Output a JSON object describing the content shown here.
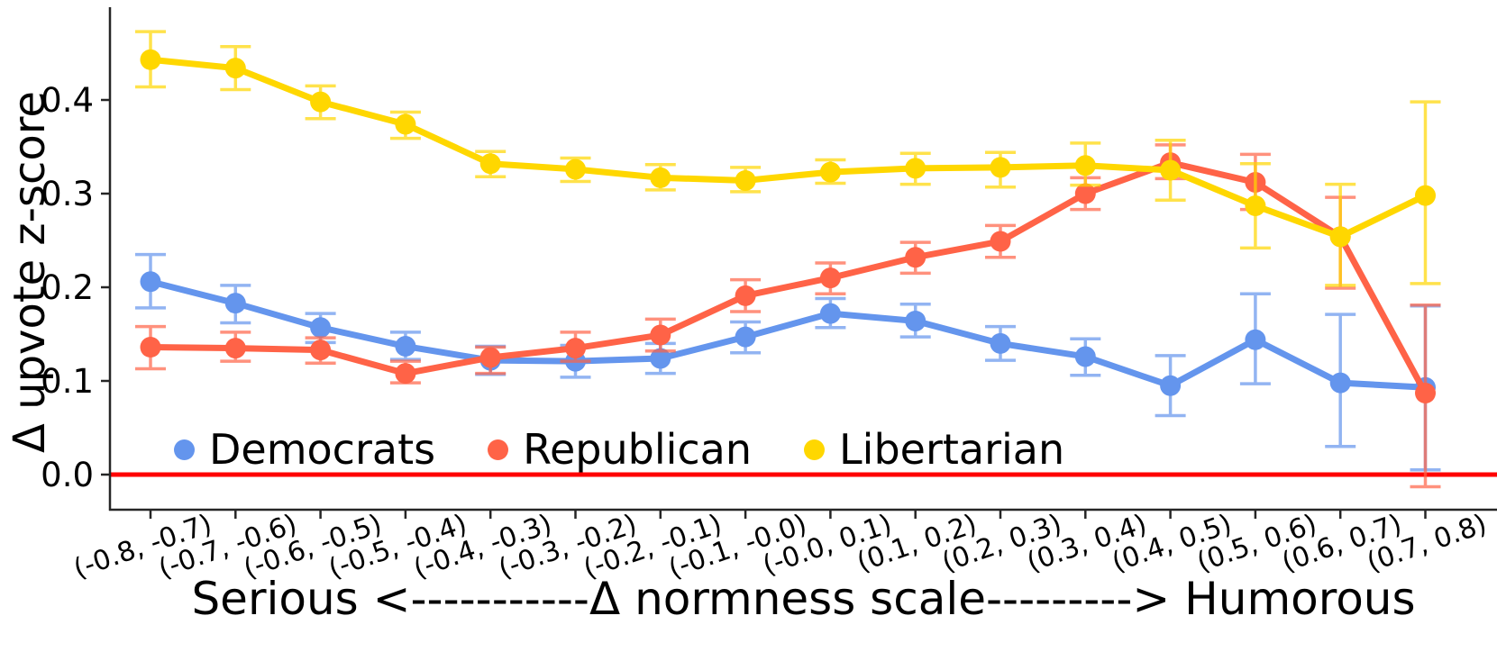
{
  "figure": {
    "background": "#ffffff",
    "axis_color": "#262626",
    "zero_line": {
      "value": 0.0,
      "color": "#ff0000"
    },
    "y_axis": {
      "label": "Δ upvote z-score",
      "ticks": [
        "0.0",
        "0.1",
        "0.2",
        "0.3",
        "0.4"
      ],
      "tick_values": [
        0.0,
        0.1,
        0.2,
        0.3,
        0.4
      ]
    },
    "x_axis": {
      "label": "Serious <-----------Δ normness scale---------> Humorous",
      "tick_rotation_deg": -19
    },
    "legend": [
      {
        "label": "Democrats",
        "color": "#6495ed"
      },
      {
        "label": "Republican",
        "color": "#ff6347"
      },
      {
        "label": "Libertarian",
        "color": "#ffd700"
      }
    ]
  },
  "chart_data": {
    "type": "line",
    "title": "",
    "xlabel": "Serious <-----------Δ normness scale---------> Humorous",
    "ylabel": "Δ upvote z-score",
    "ylim": [
      -0.045,
      0.5
    ],
    "grid": false,
    "legend_position": "lower-left-inside",
    "zero_line": 0.0,
    "error_bars": true,
    "categories": [
      "(-0.8, -0.7)",
      "(-0.7, -0.6)",
      "(-0.6, -0.5)",
      "(-0.5, -0.4)",
      "(-0.4, -0.3)",
      "(-0.3, -0.2)",
      "(-0.2, -0.1)",
      "(-0.1, -0.0)",
      "(-0.0, 0.1)",
      "(0.1, 0.2)",
      "(0.2, 0.3)",
      "(0.3, 0.4)",
      "(0.4, 0.5)",
      "(0.5, 0.6)",
      "(0.6, 0.7)",
      "(0.7, 0.8)"
    ],
    "series": [
      {
        "name": "Democrats",
        "color": "#6495ed",
        "values": [
          0.206,
          0.183,
          0.157,
          0.137,
          0.122,
          0.121,
          0.124,
          0.147,
          0.172,
          0.164,
          0.14,
          0.126,
          0.095,
          0.144,
          0.098,
          0.093
        ],
        "lower": [
          0.178,
          0.162,
          0.141,
          0.123,
          0.107,
          0.104,
          0.108,
          0.13,
          0.157,
          0.147,
          0.122,
          0.106,
          0.063,
          0.097,
          0.03,
          0.005
        ],
        "upper": [
          0.235,
          0.202,
          0.172,
          0.152,
          0.137,
          0.138,
          0.14,
          0.163,
          0.188,
          0.182,
          0.158,
          0.145,
          0.127,
          0.193,
          0.171,
          0.18
        ]
      },
      {
        "name": "Republican",
        "color": "#ff6347",
        "values": [
          0.136,
          0.135,
          0.133,
          0.108,
          0.125,
          0.135,
          0.149,
          0.191,
          0.21,
          0.232,
          0.249,
          0.3,
          0.333,
          0.312,
          0.254,
          0.087
        ],
        "lower": [
          0.113,
          0.121,
          0.119,
          0.098,
          0.108,
          0.121,
          0.132,
          0.174,
          0.193,
          0.215,
          0.232,
          0.283,
          0.316,
          0.283,
          0.199,
          -0.013
        ],
        "upper": [
          0.158,
          0.152,
          0.146,
          0.121,
          0.136,
          0.152,
          0.166,
          0.208,
          0.226,
          0.248,
          0.266,
          0.317,
          0.352,
          0.342,
          0.296,
          0.181
        ]
      },
      {
        "name": "Libertarian",
        "color": "#ffd700",
        "values": [
          0.443,
          0.434,
          0.398,
          0.374,
          0.332,
          0.326,
          0.317,
          0.314,
          0.323,
          0.327,
          0.328,
          0.33,
          0.325,
          0.287,
          0.254,
          0.298
        ],
        "lower": [
          0.414,
          0.411,
          0.38,
          0.359,
          0.318,
          0.313,
          0.304,
          0.302,
          0.311,
          0.31,
          0.307,
          0.309,
          0.293,
          0.242,
          0.202,
          0.204
        ],
        "upper": [
          0.473,
          0.457,
          0.415,
          0.387,
          0.345,
          0.338,
          0.331,
          0.328,
          0.336,
          0.343,
          0.344,
          0.354,
          0.357,
          0.332,
          0.31,
          0.398
        ]
      }
    ]
  }
}
